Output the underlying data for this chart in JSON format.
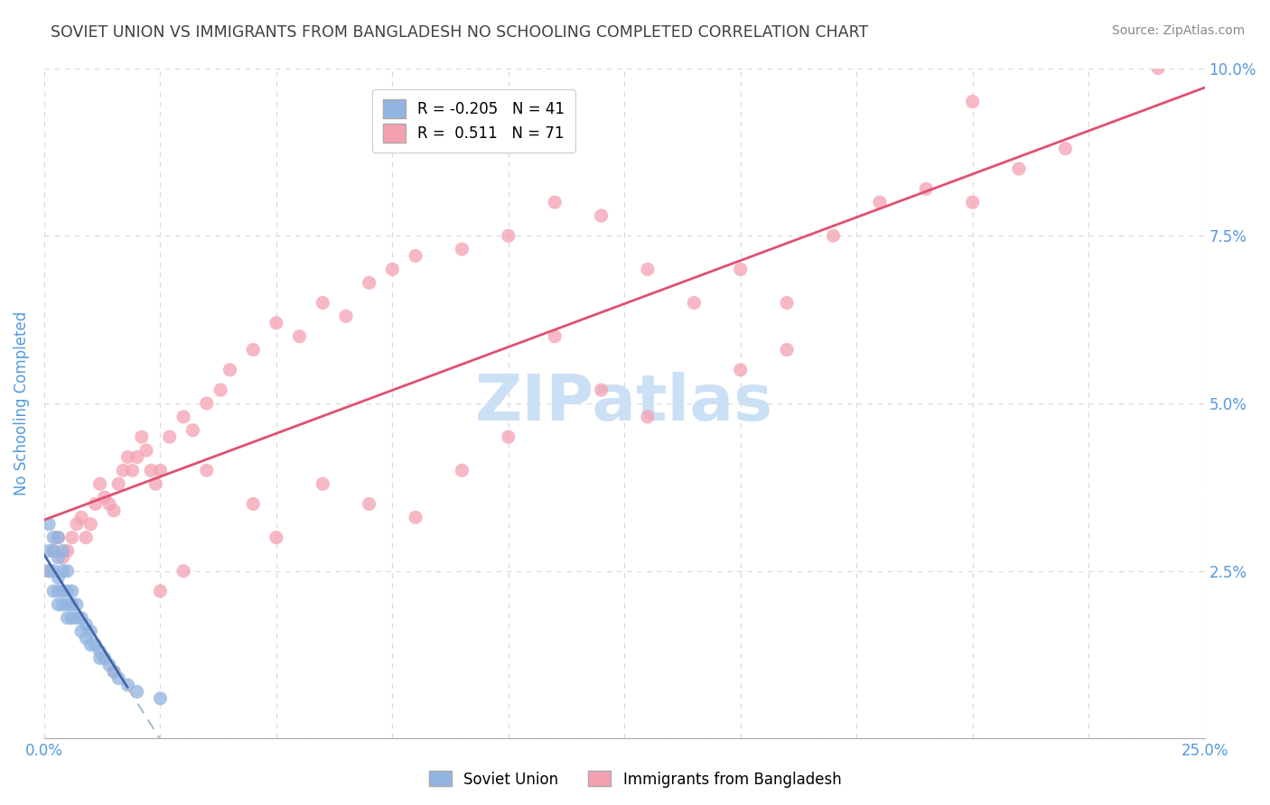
{
  "title": "SOVIET UNION VS IMMIGRANTS FROM BANGLADESH NO SCHOOLING COMPLETED CORRELATION CHART",
  "source": "Source: ZipAtlas.com",
  "ylabel": "No Schooling Completed",
  "xlim": [
    0.0,
    0.25
  ],
  "ylim": [
    0.0,
    0.1
  ],
  "xticks": [
    0.0,
    0.025,
    0.05,
    0.075,
    0.1,
    0.125,
    0.15,
    0.175,
    0.2,
    0.225,
    0.25
  ],
  "yticks": [
    0.0,
    0.025,
    0.05,
    0.075,
    0.1
  ],
  "xtick_labels": [
    "0.0%",
    "",
    "",
    "",
    "",
    "",
    "",
    "",
    "",
    "",
    "25.0%"
  ],
  "ytick_labels_right": [
    "",
    "2.5%",
    "5.0%",
    "7.5%",
    "10.0%"
  ],
  "soviet_R": -0.205,
  "soviet_N": 41,
  "bangladesh_R": 0.511,
  "bangladesh_N": 71,
  "soviet_color": "#92b4e0",
  "bangladesh_color": "#f4a0b0",
  "soviet_line_color": "#4466aa",
  "soviet_line_dash_color": "#aabbcc",
  "bangladesh_line_color": "#e05070",
  "watermark": "ZIPatlas",
  "watermark_color": "#cce0f5",
  "legend_border_color": "#cccccc",
  "grid_color": "#d8d8d8",
  "title_color": "#404040",
  "axis_label_color": "#5599dd",
  "soviet_x": [
    0.001,
    0.001,
    0.001,
    0.002,
    0.002,
    0.002,
    0.002,
    0.003,
    0.003,
    0.003,
    0.003,
    0.003,
    0.004,
    0.004,
    0.004,
    0.004,
    0.005,
    0.005,
    0.005,
    0.005,
    0.006,
    0.006,
    0.006,
    0.007,
    0.007,
    0.008,
    0.008,
    0.009,
    0.009,
    0.01,
    0.01,
    0.011,
    0.012,
    0.012,
    0.013,
    0.014,
    0.015,
    0.016,
    0.018,
    0.02,
    0.025
  ],
  "soviet_y": [
    0.032,
    0.028,
    0.025,
    0.03,
    0.028,
    0.025,
    0.022,
    0.03,
    0.027,
    0.024,
    0.022,
    0.02,
    0.028,
    0.025,
    0.022,
    0.02,
    0.025,
    0.022,
    0.02,
    0.018,
    0.022,
    0.02,
    0.018,
    0.02,
    0.018,
    0.018,
    0.016,
    0.017,
    0.015,
    0.016,
    0.014,
    0.014,
    0.013,
    0.012,
    0.012,
    0.011,
    0.01,
    0.009,
    0.008,
    0.007,
    0.006
  ],
  "bangladesh_x": [
    0.001,
    0.002,
    0.003,
    0.004,
    0.005,
    0.006,
    0.007,
    0.008,
    0.009,
    0.01,
    0.011,
    0.012,
    0.013,
    0.014,
    0.015,
    0.016,
    0.017,
    0.018,
    0.019,
    0.02,
    0.021,
    0.022,
    0.023,
    0.024,
    0.025,
    0.027,
    0.03,
    0.032,
    0.035,
    0.038,
    0.04,
    0.045,
    0.05,
    0.055,
    0.06,
    0.065,
    0.07,
    0.075,
    0.08,
    0.09,
    0.1,
    0.11,
    0.12,
    0.13,
    0.14,
    0.15,
    0.16,
    0.17,
    0.18,
    0.19,
    0.2,
    0.21,
    0.22,
    0.035,
    0.05,
    0.07,
    0.09,
    0.11,
    0.13,
    0.15,
    0.03,
    0.025,
    0.045,
    0.06,
    0.08,
    0.1,
    0.12,
    0.16,
    0.2,
    0.24,
    0.015
  ],
  "bangladesh_y": [
    0.025,
    0.028,
    0.03,
    0.027,
    0.028,
    0.03,
    0.032,
    0.033,
    0.03,
    0.032,
    0.035,
    0.038,
    0.036,
    0.035,
    0.034,
    0.038,
    0.04,
    0.042,
    0.04,
    0.042,
    0.045,
    0.043,
    0.04,
    0.038,
    0.04,
    0.045,
    0.048,
    0.046,
    0.05,
    0.052,
    0.055,
    0.058,
    0.062,
    0.06,
    0.065,
    0.063,
    0.068,
    0.07,
    0.072,
    0.073,
    0.075,
    0.08,
    0.078,
    0.07,
    0.065,
    0.07,
    0.065,
    0.075,
    0.08,
    0.082,
    0.08,
    0.085,
    0.088,
    0.04,
    0.03,
    0.035,
    0.04,
    0.06,
    0.048,
    0.055,
    0.025,
    0.022,
    0.035,
    0.038,
    0.033,
    0.045,
    0.052,
    0.058,
    0.095,
    0.1,
    0.01
  ]
}
